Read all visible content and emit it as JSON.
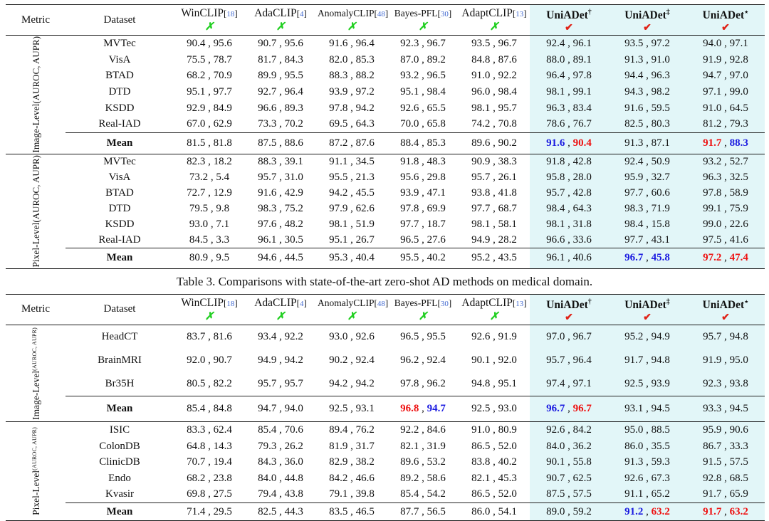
{
  "colors": {
    "highlight_bg": "#e2f6f8",
    "cite_blue": "#4169d0",
    "best_red": "#ee1111",
    "second_blue": "#1a1ae0",
    "cross_green": "#21cf21",
    "check_red": "#e02318",
    "rule_dark": "#1a1a1a"
  },
  "marks": {
    "cross": "✗",
    "check": "✔"
  },
  "caption": "Table 3. Comparisons with state-of-the-art zero-shot AD methods on medical domain.",
  "header": {
    "metric": "Metric",
    "dataset": "Dataset",
    "cite_prefix": "[",
    "cite_suffix": "]",
    "methods": [
      {
        "label": "WinCLIP",
        "cite": "18",
        "mark": "cross",
        "small": false,
        "highlight": false
      },
      {
        "label": "AdaCLIP",
        "cite": "4",
        "mark": "cross",
        "small": false,
        "highlight": false
      },
      {
        "label": "AnomalyCLIP",
        "cite": "48",
        "mark": "cross",
        "small": true,
        "highlight": false
      },
      {
        "label": "Bayes-PFL",
        "cite": "30",
        "mark": "cross",
        "small": true,
        "highlight": false
      },
      {
        "label": "AdaptCLIP",
        "cite": "13",
        "mark": "cross",
        "small": false,
        "highlight": false
      },
      {
        "label": "UniADet",
        "sup": "†",
        "mark": "check",
        "small": false,
        "highlight": true
      },
      {
        "label": "UniADet",
        "sup": "‡",
        "mark": "check",
        "small": false,
        "highlight": true
      },
      {
        "label": "UniADet",
        "sup": "⋆",
        "mark": "check",
        "small": false,
        "highlight": true
      }
    ]
  },
  "tables": [
    {
      "name": "industrial-domain-table",
      "sections": [
        {
          "metric_label": "Image-Level",
          "metric_sub": "(AUROC, AUPR)",
          "rows": [
            {
              "dataset": "MVTec",
              "cells": [
                "90.4 , 95.6",
                "90.7 , 95.6",
                "91.6 , 96.4",
                "92.3 , 96.7",
                "93.5 , 96.7",
                "92.4 , 96.1",
                "93.5 , 97.2",
                "94.0 , 97.1"
              ]
            },
            {
              "dataset": "VisA",
              "cells": [
                "75.5 , 78.7",
                "81.7 , 84.3",
                "82.0 , 85.3",
                "87.0 , 89.2",
                "84.8 , 87.6",
                "88.0 , 89.1",
                "91.3 , 91.0",
                "91.9 , 92.8"
              ]
            },
            {
              "dataset": "BTAD",
              "cells": [
                "68.2 , 70.9",
                "89.9 , 95.5",
                "88.3 , 88.2",
                "93.2 , 96.5",
                "91.0 , 92.2",
                "96.4 , 97.8",
                "94.4 , 96.3",
                "94.7 , 97.0"
              ]
            },
            {
              "dataset": "DTD",
              "cells": [
                "95.1 , 97.7",
                "92.7 , 96.4",
                "93.9 , 97.2",
                "95.1 , 98.4",
                "96.0 , 98.4",
                "98.1 , 99.1",
                "94.3 , 98.2",
                "97.1 , 99.0"
              ]
            },
            {
              "dataset": "KSDD",
              "cells": [
                "92.9 , 84.9",
                "96.6 , 89.3",
                "97.8 , 94.2",
                "92.6 , 65.5",
                "98.1 , 95.7",
                "96.3 , 83.4",
                "91.6 , 59.5",
                "91.0 , 64.5"
              ]
            },
            {
              "dataset": "Real-IAD",
              "cells": [
                "67.0 , 62.9",
                "73.3 , 70.2",
                "69.5 , 64.3",
                "70.0 , 65.8",
                "74.2 , 70.8",
                "78.6 , 76.7",
                "82.5 , 80.3",
                "81.2 , 79.3"
              ]
            }
          ],
          "mean_label": "Mean",
          "mean_cells": [
            "81.5 , 81.8",
            "87.5 , 88.6",
            "87.2 , 87.6",
            "88.4 , 85.3",
            "89.6 , 90.2",
            "91.6 , 90.4",
            "91.3 , 87.1",
            "91.7 , 88.3"
          ],
          "mean_styles": [
            null,
            null,
            null,
            null,
            null,
            [
              "second",
              "best"
            ],
            null,
            [
              "best",
              "second"
            ]
          ]
        },
        {
          "metric_label": "Pixel-Level",
          "metric_sub": "(AUROC, AUPR)",
          "rows": [
            {
              "dataset": "MVTec",
              "cells": [
                "82.3 , 18.2",
                "88.3 , 39.1",
                "91.1 , 34.5",
                "91.8 , 48.3",
                "90.9 , 38.3",
                "91.8 , 42.8",
                "92.4 , 50.9",
                "93.2 , 52.7"
              ]
            },
            {
              "dataset": "VisA",
              "cells": [
                "73.2 , 5.4",
                "95.7 , 31.0",
                "95.5 , 21.3",
                "95.6 , 29.8",
                "95.7 , 26.1",
                "95.8 , 28.0",
                "95.9 , 32.7",
                "96.3 , 32.5"
              ]
            },
            {
              "dataset": "BTAD",
              "cells": [
                "72.7 , 12.9",
                "91.6 , 42.9",
                "94.2 , 45.5",
                "93.9 , 47.1",
                "93.8 , 41.8",
                "95.7 , 42.8",
                "97.7 , 60.6",
                "97.8 , 58.9"
              ]
            },
            {
              "dataset": "DTD",
              "cells": [
                "79.5 , 9.8",
                "98.3 , 75.2",
                "97.9 , 62.6",
                "97.8 , 69.9",
                "97.7 , 68.7",
                "98.4 , 64.3",
                "98.3 , 71.9",
                "99.1 , 75.9"
              ]
            },
            {
              "dataset": "KSDD",
              "cells": [
                "93.0 , 7.1",
                "97.6 , 48.2",
                "98.1 , 51.9",
                "97.7 , 18.7",
                "98.1 , 58.1",
                "98.1 , 31.8",
                "98.4 , 15.8",
                "99.0 , 22.6"
              ]
            },
            {
              "dataset": "Real-IAD",
              "cells": [
                "84.5 , 3.3",
                "96.1 , 30.5",
                "95.1 , 26.7",
                "96.5 , 27.6",
                "94.9 , 28.2",
                "96.6 , 33.6",
                "97.7 , 43.1",
                "97.5 , 41.6"
              ]
            }
          ],
          "mean_label": "Mean",
          "mean_cells": [
            "80.9 , 9.5",
            "94.6 , 44.5",
            "95.3 , 40.4",
            "95.5 , 40.2",
            "95.2 , 43.5",
            "96.1 , 40.6",
            "96.7 , 45.8",
            "97.2 , 47.4"
          ],
          "mean_styles": [
            null,
            null,
            null,
            null,
            null,
            null,
            [
              "second",
              "second"
            ],
            [
              "best",
              "best"
            ]
          ]
        }
      ]
    },
    {
      "name": "medical-domain-table",
      "sections": [
        {
          "metric_label": "Image-Level",
          "metric_sub": "(AUROC, AUPR)",
          "rows": [
            {
              "dataset": "HeadCT",
              "cells": [
                "83.7 , 81.6",
                "93.4 , 92.2",
                "93.0 , 92.6",
                "96.5 , 95.5",
                "92.6 , 91.9",
                "97.0 , 96.7",
                "95.2 , 94.9",
                "95.7 , 94.8"
              ]
            },
            {
              "dataset": "BrainMRI",
              "cells": [
                "92.0 , 90.7",
                "94.9 , 94.2",
                "90.2 , 92.4",
                "96.2 , 92.4",
                "90.1 , 92.0",
                "95.7 , 96.4",
                "91.7 , 94.8",
                "91.9 , 95.0"
              ]
            },
            {
              "dataset": "Br35H",
              "cells": [
                "80.5 , 82.2",
                "95.7 , 95.7",
                "94.2 , 94.2",
                "97.8 , 96.2",
                "94.8 , 95.1",
                "97.4 , 97.1",
                "92.5 , 93.9",
                "92.3 , 93.8"
              ]
            }
          ],
          "mean_label": "Mean",
          "mean_cells": [
            "85.4 , 84.8",
            "94.7 , 94.0",
            "92.5 , 93.1",
            "96.8 , 94.7",
            "92.5 , 93.0",
            "96.7 , 96.7",
            "93.1 , 94.5",
            "93.3 , 94.5"
          ],
          "mean_styles": [
            null,
            null,
            null,
            [
              "best",
              "second"
            ],
            null,
            [
              "second",
              "best"
            ],
            null,
            null
          ]
        },
        {
          "metric_label": "Pixel-Level",
          "metric_sub": "(AUROC, AUPR)",
          "rows": [
            {
              "dataset": "ISIC",
              "cells": [
                "83.3 , 62.4",
                "85.4 , 70.6",
                "89.4 , 76.2",
                "92.2 , 84.6",
                "91.0 , 80.9",
                "92.6 , 84.2",
                "95.0 , 88.5",
                "95.9 , 90.6"
              ]
            },
            {
              "dataset": "ColonDB",
              "cells": [
                "64.8 , 14.3",
                "79.3 , 26.2",
                "81.9 , 31.7",
                "82.1 , 31.9",
                "86.5 , 52.0",
                "84.0 , 36.2",
                "86.0 , 35.5",
                "86.7 , 33.3"
              ]
            },
            {
              "dataset": "ClinicDB",
              "cells": [
                "70.7 , 19.4",
                "84.3 , 36.0",
                "82.9 , 38.2",
                "89.6 , 53.2",
                "83.8 , 40.2",
                "90.1 , 55.8",
                "91.3 , 59.3",
                "91.5 , 57.5"
              ]
            },
            {
              "dataset": "Endo",
              "cells": [
                "68.2 , 23.8",
                "84.0 , 44.8",
                "84.2 , 46.6",
                "89.2 , 58.6",
                "82.1 , 45.3",
                "90.7 , 62.5",
                "92.6 , 67.3",
                "92.8 , 68.5"
              ]
            },
            {
              "dataset": "Kvasir",
              "cells": [
                "69.8 , 27.5",
                "79.4 , 43.8",
                "79.1 , 39.8",
                "85.4 , 54.2",
                "86.5 , 52.0",
                "87.5 , 57.5",
                "91.1 , 65.2",
                "91.7 , 65.9"
              ]
            }
          ],
          "mean_label": "Mean",
          "mean_cells": [
            "71.4 , 29.5",
            "82.5 , 44.3",
            "83.5 , 46.5",
            "87.7 , 56.5",
            "86.0 , 54.1",
            "89.0 , 59.2",
            "91.2 , 63.2",
            "91.7 , 63.2"
          ],
          "mean_styles": [
            null,
            null,
            null,
            null,
            null,
            null,
            [
              "second",
              "best"
            ],
            [
              "best",
              "best"
            ]
          ]
        }
      ]
    }
  ]
}
